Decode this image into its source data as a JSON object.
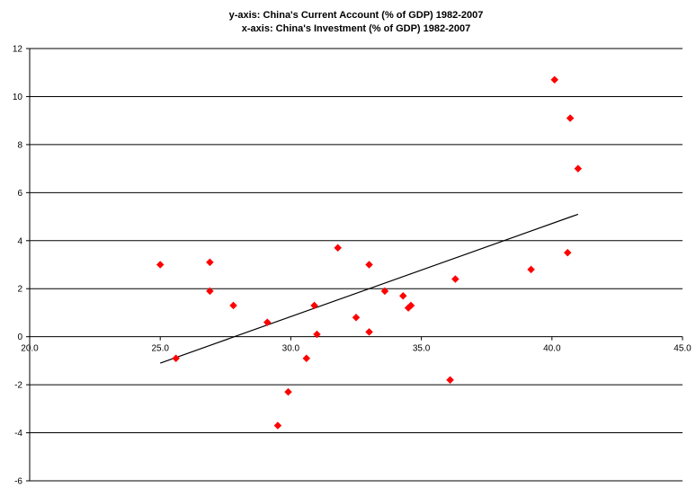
{
  "chart_data": {
    "type": "scatter",
    "title_lines": [
      "y-axis: China's  Current Account (% of GDP) 1982-2007",
      "x-axis: China's Investment (% of GDP) 1982-2007"
    ],
    "xlabel": "",
    "ylabel": "",
    "xlim": [
      20,
      45
    ],
    "ylim": [
      -6,
      12
    ],
    "x_ticks": [
      20,
      25,
      30,
      35,
      40,
      45
    ],
    "x_tick_labels": [
      "20.0",
      "25.0",
      "30.0",
      "35.0",
      "40.0",
      "45.0"
    ],
    "y_ticks": [
      -6,
      -4,
      -2,
      0,
      2,
      4,
      6,
      8,
      10,
      12
    ],
    "y_tick_labels": [
      "-6",
      "-4",
      "-2",
      "0",
      "2",
      "4",
      "6",
      "8",
      "10",
      "12"
    ],
    "grid": "horizontal",
    "legend": "none",
    "marker_color": "#ff0000",
    "trendline_color": "#000000",
    "trendline": {
      "x": [
        25.0,
        41.0
      ],
      "y": [
        -1.1,
        5.1
      ]
    },
    "points": [
      {
        "x": 25.0,
        "y": 3.0
      },
      {
        "x": 25.6,
        "y": -0.9
      },
      {
        "x": 26.9,
        "y": 3.1
      },
      {
        "x": 26.9,
        "y": 1.9
      },
      {
        "x": 27.8,
        "y": 1.3
      },
      {
        "x": 29.1,
        "y": 0.6
      },
      {
        "x": 29.5,
        "y": -3.7
      },
      {
        "x": 29.9,
        "y": -2.3
      },
      {
        "x": 30.6,
        "y": -0.9
      },
      {
        "x": 30.9,
        "y": 1.3
      },
      {
        "x": 31.0,
        "y": 0.1
      },
      {
        "x": 31.8,
        "y": 3.7
      },
      {
        "x": 32.5,
        "y": 0.8
      },
      {
        "x": 33.0,
        "y": 3.0
      },
      {
        "x": 33.0,
        "y": 0.2
      },
      {
        "x": 33.6,
        "y": 1.9
      },
      {
        "x": 34.3,
        "y": 1.7
      },
      {
        "x": 34.5,
        "y": 1.2
      },
      {
        "x": 34.6,
        "y": 1.3
      },
      {
        "x": 36.1,
        "y": -1.8
      },
      {
        "x": 36.3,
        "y": 2.4
      },
      {
        "x": 39.2,
        "y": 2.8
      },
      {
        "x": 40.1,
        "y": 10.7
      },
      {
        "x": 40.6,
        "y": 3.5
      },
      {
        "x": 40.7,
        "y": 9.1
      },
      {
        "x": 41.0,
        "y": 7.0
      }
    ]
  }
}
